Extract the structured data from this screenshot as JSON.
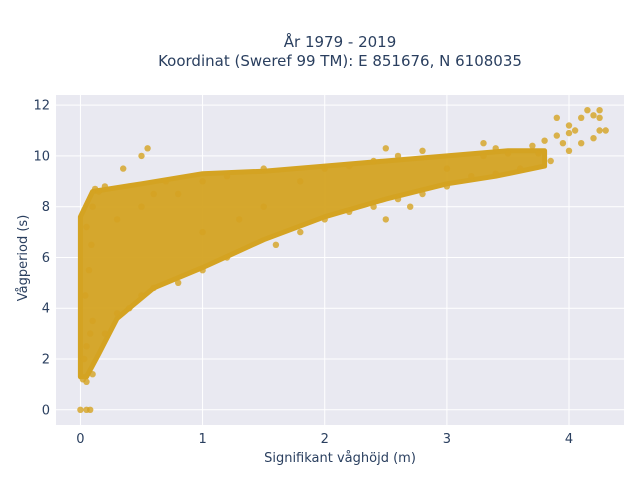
{
  "chart_data": {
    "type": "scatter",
    "title_line1": "År 1979 - 2019",
    "title_line2": "Koordinat (Sweref 99 TM): E 851676, N 6108035",
    "xlabel": "Signifikant våghöjd (m)",
    "ylabel": "Vågperiod (s)",
    "xlim": [
      -0.2,
      4.45
    ],
    "ylim": [
      -0.6,
      12.4
    ],
    "xticks": [
      0,
      1,
      2,
      3,
      4
    ],
    "yticks": [
      0,
      2,
      4,
      6,
      8,
      10,
      12
    ],
    "grid": true,
    "marker_color": "#d4a322",
    "plot_bg": "#e9e9f1",
    "grid_color": "#ffffff",
    "text_color": "#2a3f5f",
    "series": [
      {
        "points": [
          [
            0.0,
            0.0
          ],
          [
            0.05,
            0.0
          ],
          [
            0.08,
            0.0
          ],
          [
            0.02,
            1.2
          ],
          [
            0.05,
            1.1
          ],
          [
            0.1,
            1.4
          ],
          [
            0.03,
            2.0
          ],
          [
            0.05,
            2.5
          ],
          [
            0.08,
            3.0
          ],
          [
            0.1,
            3.5
          ],
          [
            0.04,
            4.5
          ],
          [
            0.07,
            5.5
          ],
          [
            0.09,
            6.5
          ],
          [
            0.05,
            7.2
          ],
          [
            0.1,
            8.0
          ],
          [
            0.12,
            8.7
          ],
          [
            0.15,
            8.6
          ],
          [
            0.2,
            8.8
          ],
          [
            0.2,
            3.0
          ],
          [
            0.3,
            3.8
          ],
          [
            0.4,
            4.0
          ],
          [
            0.5,
            4.5
          ],
          [
            0.6,
            4.8
          ],
          [
            0.8,
            5.0
          ],
          [
            1.0,
            5.5
          ],
          [
            1.2,
            6.0
          ],
          [
            0.3,
            7.5
          ],
          [
            0.5,
            8.0
          ],
          [
            0.6,
            8.5
          ],
          [
            0.7,
            9.0
          ],
          [
            0.5,
            10.0
          ],
          [
            0.55,
            10.3
          ],
          [
            0.35,
            9.5
          ],
          [
            0.8,
            8.5
          ],
          [
            1.0,
            9.0
          ],
          [
            1.2,
            9.2
          ],
          [
            1.5,
            9.5
          ],
          [
            1.0,
            7.0
          ],
          [
            1.3,
            7.5
          ],
          [
            1.5,
            8.0
          ],
          [
            1.6,
            6.5
          ],
          [
            1.8,
            7.0
          ],
          [
            2.0,
            7.5
          ],
          [
            2.2,
            7.8
          ],
          [
            2.4,
            8.0
          ],
          [
            2.6,
            8.3
          ],
          [
            1.8,
            9.0
          ],
          [
            2.0,
            9.5
          ],
          [
            2.2,
            9.6
          ],
          [
            2.4,
            9.8
          ],
          [
            2.6,
            10.0
          ],
          [
            2.8,
            10.2
          ],
          [
            2.5,
            7.5
          ],
          [
            2.5,
            10.3
          ],
          [
            2.8,
            8.5
          ],
          [
            3.0,
            8.8
          ],
          [
            3.0,
            9.5
          ],
          [
            3.2,
            9.2
          ],
          [
            3.3,
            10.0
          ],
          [
            3.5,
            10.1
          ],
          [
            3.6,
            9.5
          ],
          [
            3.3,
            10.5
          ],
          [
            3.4,
            10.3
          ],
          [
            3.7,
            10.4
          ],
          [
            3.8,
            10.6
          ],
          [
            3.9,
            10.8
          ],
          [
            4.0,
            10.9
          ],
          [
            3.85,
            9.8
          ],
          [
            3.95,
            10.5
          ],
          [
            4.0,
            11.2
          ],
          [
            3.9,
            11.5
          ],
          [
            4.1,
            11.5
          ],
          [
            4.15,
            11.8
          ],
          [
            4.2,
            11.6
          ],
          [
            4.25,
            11.8
          ],
          [
            4.25,
            11.5
          ],
          [
            4.3,
            11.0
          ],
          [
            4.25,
            11.0
          ],
          [
            4.2,
            10.7
          ],
          [
            4.1,
            10.5
          ],
          [
            4.0,
            10.2
          ],
          [
            3.75,
            10.1
          ],
          [
            4.05,
            11.0
          ],
          [
            3.4,
            9.3
          ],
          [
            2.7,
            8.0
          ]
        ]
      }
    ]
  }
}
